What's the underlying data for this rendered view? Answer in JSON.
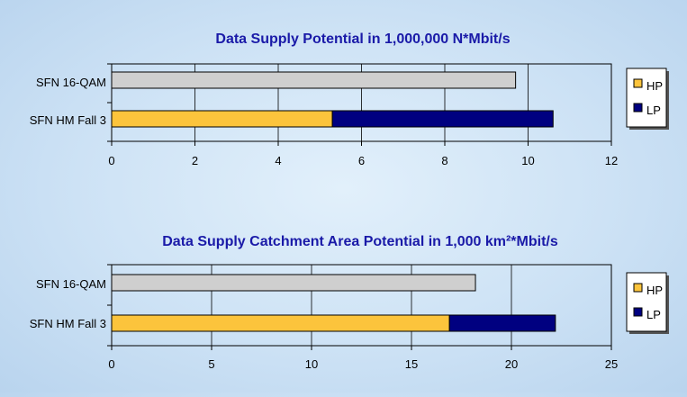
{
  "chart_data": [
    {
      "type": "bar",
      "orientation": "horizontal",
      "stacked": true,
      "title": "Data Supply Potential in 1,000,000 N*Mbit/s",
      "categories": [
        "SFN 16-QAM",
        "SFN HM Fall 3"
      ],
      "series": [
        {
          "name": "HP",
          "color": "#fcc43c",
          "values": [
            null,
            5.3
          ]
        },
        {
          "name": "LP",
          "color": "#000080",
          "values": [
            null,
            5.3
          ]
        },
        {
          "name": "",
          "color": "#cfcfcf",
          "values": [
            9.7,
            null
          ]
        }
      ],
      "xlim": [
        0,
        12
      ],
      "xticks": [
        "0",
        "2",
        "4",
        "6",
        "8",
        "10",
        "12"
      ],
      "xtick_values": [
        0,
        2,
        4,
        6,
        8,
        10,
        12
      ],
      "grid": "vertical",
      "legend": "right"
    },
    {
      "type": "bar",
      "orientation": "horizontal",
      "stacked": true,
      "title": "Data Supply Catchment Area Potential in 1,000 km²*Mbit/s",
      "categories": [
        "SFN 16-QAM",
        "SFN HM Fall 3"
      ],
      "series": [
        {
          "name": "HP",
          "color": "#fcc43c",
          "values": [
            null,
            16.9
          ]
        },
        {
          "name": "LP",
          "color": "#000080",
          "values": [
            null,
            5.3
          ]
        },
        {
          "name": "",
          "color": "#cfcfcf",
          "values": [
            18.2,
            null
          ]
        }
      ],
      "xlim": [
        0,
        25
      ],
      "xticks": [
        "0",
        "5",
        "10",
        "15",
        "20",
        "25"
      ],
      "xtick_values": [
        0,
        5,
        10,
        15,
        20,
        25
      ],
      "grid": "vertical",
      "legend": "right"
    }
  ]
}
